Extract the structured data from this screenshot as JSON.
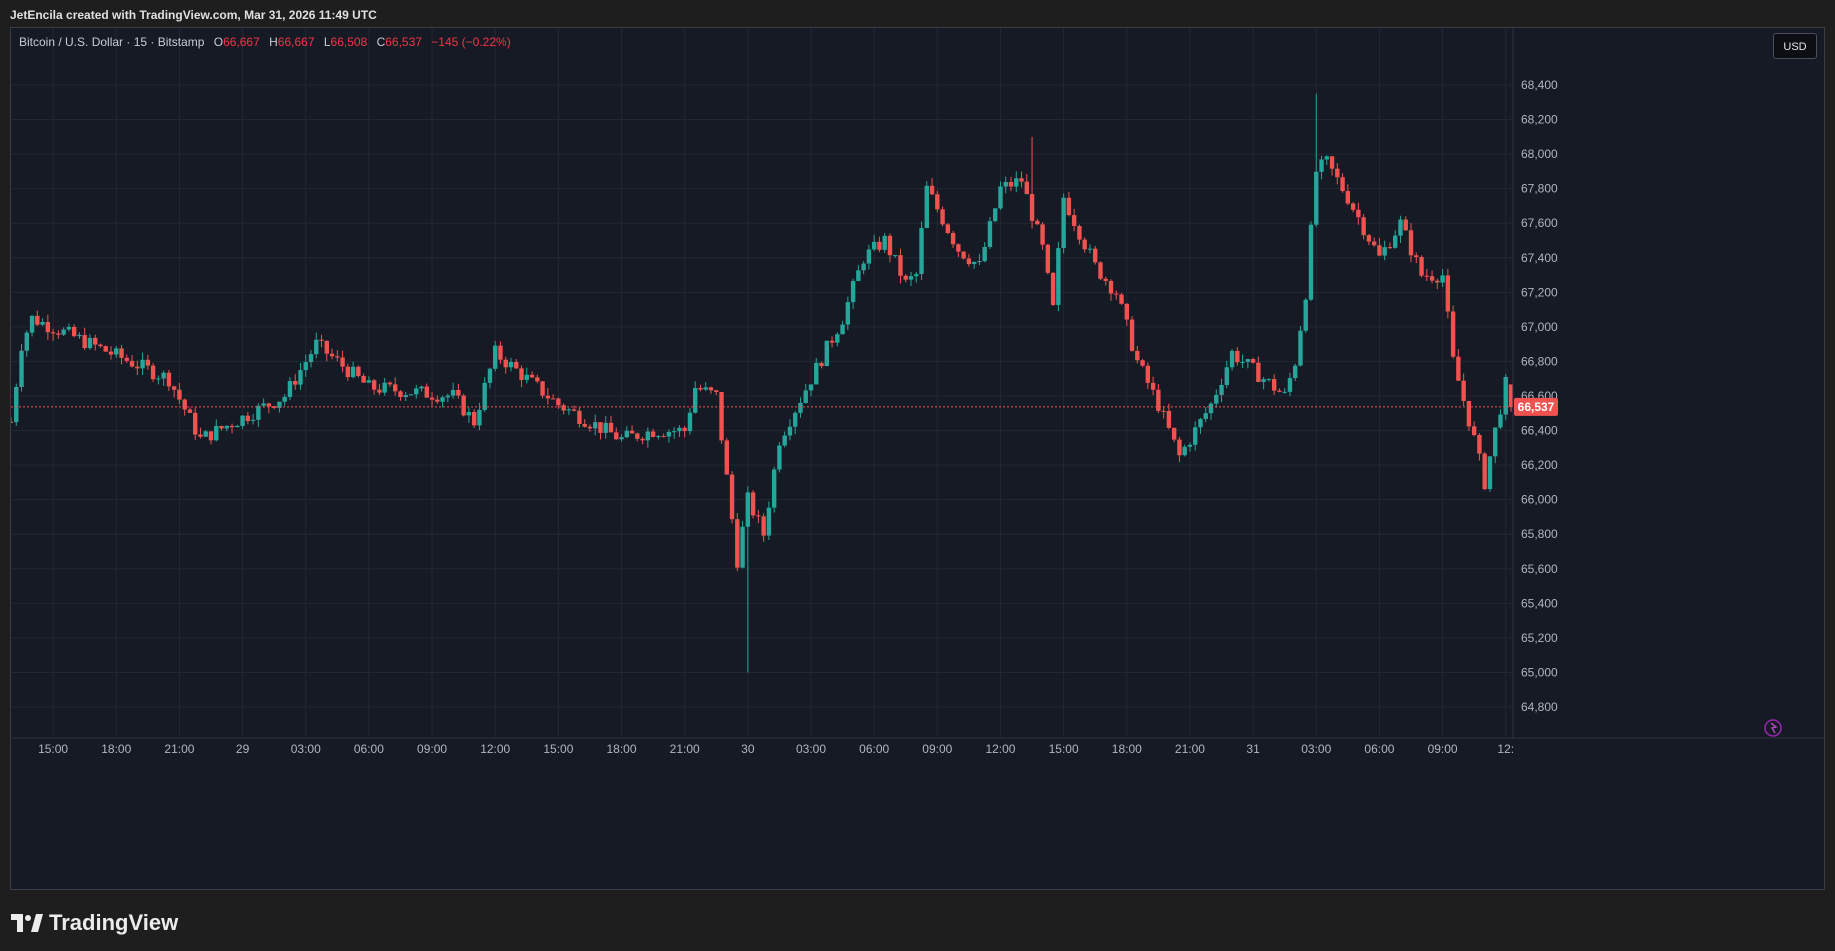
{
  "attribution": "JetEncila created with TradingView.com, Mar 31, 2026 11:49 UTC",
  "legend": {
    "symbol": "Bitcoin / U.S. Dollar · 15 · Bitstamp",
    "open_label": "O",
    "open": "66,667",
    "high_label": "H",
    "high": "66,667",
    "low_label": "L",
    "low": "66,508",
    "close_label": "C",
    "close": "66,537",
    "change": "−145 (−0.22%)"
  },
  "currency_button": "USD",
  "brand": "TradingView",
  "colors": {
    "up": "#26a69a",
    "down": "#ef5350",
    "background": "#161a25",
    "price_line": "#ef5350"
  },
  "chart_data": {
    "type": "candlestick",
    "symbol": "Bitcoin / U.S. Dollar",
    "interval": "15",
    "exchange": "Bitstamp",
    "y_ticks": [
      64800,
      65000,
      65200,
      65400,
      65600,
      65800,
      66000,
      66200,
      66400,
      66600,
      66800,
      67000,
      67200,
      67400,
      67600,
      67800,
      68000,
      68200,
      68400
    ],
    "y_tick_labels": [
      "64,800",
      "65,000",
      "65,200",
      "65,400",
      "65,600",
      "65,800",
      "66,000",
      "66,200",
      "66,400",
      "66,600",
      "66,800",
      "67,000",
      "67,200",
      "67,400",
      "67,600",
      "67,800",
      "68,000",
      "68,200",
      "68,400"
    ],
    "x_tick_labels": [
      "15:00",
      "18:00",
      "21:00",
      "29",
      "03:00",
      "06:00",
      "09:00",
      "12:00",
      "15:00",
      "18:00",
      "21:00",
      "30",
      "03:00",
      "06:00",
      "09:00",
      "12:00",
      "15:00",
      "18:00",
      "21:00",
      "31",
      "03:00",
      "06:00",
      "09:00",
      "12:"
    ],
    "last_price": 66537,
    "last_price_label": "66,537",
    "key_points": [
      {
        "time": "28 13:00",
        "price": 66450
      },
      {
        "time": "28 13:30",
        "price": 66900
      },
      {
        "time": "28 14:00",
        "price": 67050
      },
      {
        "time": "28 20:30",
        "price": 66700
      },
      {
        "time": "28 22:00",
        "price": 66350
      },
      {
        "time": "29 02:00",
        "price": 66600
      },
      {
        "time": "29 03:30",
        "price": 66900
      },
      {
        "time": "29 06:00",
        "price": 66650
      },
      {
        "time": "29 10:00",
        "price": 66600
      },
      {
        "time": "29 11:00",
        "price": 66450
      },
      {
        "time": "29 12:00",
        "price": 66850
      },
      {
        "time": "29 15:00",
        "price": 66550
      },
      {
        "time": "29 18:00",
        "price": 66350
      },
      {
        "time": "29 19:30",
        "price": 66400
      },
      {
        "time": "29 21:00",
        "price": 66400
      },
      {
        "time": "29 21:30",
        "price": 66650
      },
      {
        "time": "29 22:30",
        "price": 66600
      },
      {
        "time": "29 23:30",
        "price": 65650
      },
      {
        "time": "30 00:00",
        "price": 66000
      },
      {
        "time": "30 00:45",
        "price": 65800
      },
      {
        "time": "30 01:30",
        "price": 66350
      },
      {
        "time": "30 03:00",
        "price": 66700
      },
      {
        "time": "30 04:30",
        "price": 67050
      },
      {
        "time": "30 05:30",
        "price": 67400
      },
      {
        "time": "30 06:30",
        "price": 67500
      },
      {
        "time": "30 07:30",
        "price": 67250
      },
      {
        "time": "30 08:00",
        "price": 67300
      },
      {
        "time": "30 08:30",
        "price": 67800
      },
      {
        "time": "30 10:00",
        "price": 67450
      },
      {
        "time": "30 11:00",
        "price": 67350
      },
      {
        "time": "30 12:00",
        "price": 67800
      },
      {
        "time": "30 13:00",
        "price": 67850
      },
      {
        "time": "30 14:00",
        "price": 67450
      },
      {
        "time": "30 14:30",
        "price": 67100
      },
      {
        "time": "30 15:00",
        "price": 67750
      },
      {
        "time": "30 16:30",
        "price": 67350
      },
      {
        "time": "30 17:30",
        "price": 67200
      },
      {
        "time": "30 18:30",
        "price": 66800
      },
      {
        "time": "30 19:30",
        "price": 66550
      },
      {
        "time": "30 20:30",
        "price": 66250
      },
      {
        "time": "30 22:00",
        "price": 66550
      },
      {
        "time": "30 23:00",
        "price": 66850
      },
      {
        "time": "31 00:30",
        "price": 66700
      },
      {
        "time": "31 01:30",
        "price": 66600
      },
      {
        "time": "31 02:00",
        "price": 66800
      },
      {
        "time": "31 02:30",
        "price": 67200
      },
      {
        "time": "31 03:00",
        "price": 67900
      },
      {
        "time": "31 03:30",
        "price": 67950
      },
      {
        "time": "31 04:30",
        "price": 67750
      },
      {
        "time": "31 06:00",
        "price": 67400
      },
      {
        "time": "31 07:00",
        "price": 67600
      },
      {
        "time": "31 08:00",
        "price": 67300
      },
      {
        "time": "31 09:00",
        "price": 67300
      },
      {
        "time": "31 09:30",
        "price": 66800
      },
      {
        "time": "31 10:30",
        "price": 66350
      },
      {
        "time": "31 11:00",
        "price": 66100
      },
      {
        "time": "31 11:30",
        "price": 66400
      },
      {
        "time": "31 12:00",
        "price": 66667
      },
      {
        "time": "31 12:15",
        "price": 66537
      }
    ],
    "grid": true,
    "legend": "top-left"
  }
}
